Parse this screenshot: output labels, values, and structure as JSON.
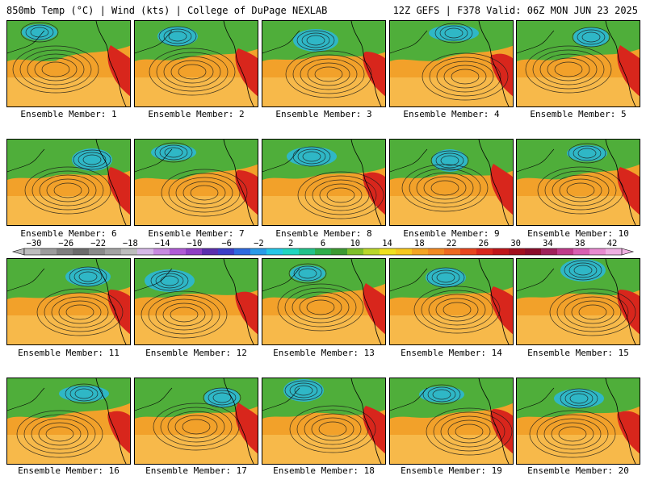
{
  "header": {
    "left": "850mb Temp (°C) | Wind (kts) | College of DuPage NEXLAB",
    "right": "12Z GEFS | F378 Valid: 06Z MON JUN 23 2025"
  },
  "members": [
    {
      "label": "Ensemble Member: 1"
    },
    {
      "label": "Ensemble Member: 2"
    },
    {
      "label": "Ensemble Member: 3"
    },
    {
      "label": "Ensemble Member: 4"
    },
    {
      "label": "Ensemble Member: 5"
    },
    {
      "label": "Ensemble Member: 6"
    },
    {
      "label": "Ensemble Member: 7"
    },
    {
      "label": "Ensemble Member: 8"
    },
    {
      "label": "Ensemble Member: 9"
    },
    {
      "label": "Ensemble Member: 10"
    },
    {
      "label": "Ensemble Member: 11"
    },
    {
      "label": "Ensemble Member: 12"
    },
    {
      "label": "Ensemble Member: 13"
    },
    {
      "label": "Ensemble Member: 14"
    },
    {
      "label": "Ensemble Member: 15"
    },
    {
      "label": "Ensemble Member: 16"
    },
    {
      "label": "Ensemble Member: 17"
    },
    {
      "label": "Ensemble Member: 18"
    },
    {
      "label": "Ensemble Member: 19"
    },
    {
      "label": "Ensemble Member: 20"
    }
  ],
  "colorbar": {
    "ticks": [
      "−30",
      "−26",
      "−22",
      "−18",
      "−14",
      "−10",
      "−6",
      "−2",
      "2",
      "6",
      "10",
      "14",
      "18",
      "22",
      "26",
      "30",
      "34",
      "38",
      "42"
    ],
    "colors": [
      "#bdbdbd",
      "#9c9c9c",
      "#7f7f7f",
      "#6b6b6b",
      "#8a8a8a",
      "#a3a3a3",
      "#bdbdbd",
      "#d6b8e8",
      "#c889e0",
      "#b05bd6",
      "#8f3fc4",
      "#5b2fae",
      "#3b3fc8",
      "#2e6ae0",
      "#2a9be8",
      "#25c6e8",
      "#1fd6c0",
      "#22c28a",
      "#2fae4a",
      "#3d9a32",
      "#7fbf2a",
      "#b9d62a",
      "#f0e020",
      "#f7c81e",
      "#f4a523",
      "#f28a22",
      "#ee6a20",
      "#e8461e",
      "#d9261c",
      "#c0161a",
      "#a2101e",
      "#8a0d2a",
      "#a0205a",
      "#c03a8a",
      "#d85fb2",
      "#e88ad0",
      "#f0b0e2"
    ]
  },
  "colors": {
    "warm": "#f2a12a",
    "warm_light": "#f7b94a",
    "cold": "#2fb7c6",
    "green": "#4fae3a",
    "hot": "#d8261c"
  }
}
